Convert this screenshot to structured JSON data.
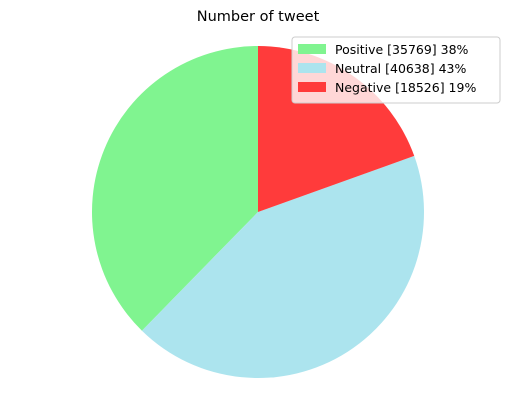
{
  "chart_data": {
    "type": "pie",
    "title": "Number of tweet",
    "series": [
      {
        "name": "Positive",
        "count": 35769,
        "percent": 38,
        "legend_label": "Positive [35769] 38%",
        "color": "#80f490"
      },
      {
        "name": "Neutral",
        "count": 40638,
        "percent": 43,
        "legend_label": "Neutral [40638] 43%",
        "color": "#ace4ee"
      },
      {
        "name": "Negative",
        "count": 18526,
        "percent": 19,
        "legend_label": "Negative [18526] 19%",
        "color": "#ff3b3b"
      }
    ],
    "start_angle_deg": 90,
    "direction": "counterclockwise",
    "legend_position": "top-right"
  }
}
